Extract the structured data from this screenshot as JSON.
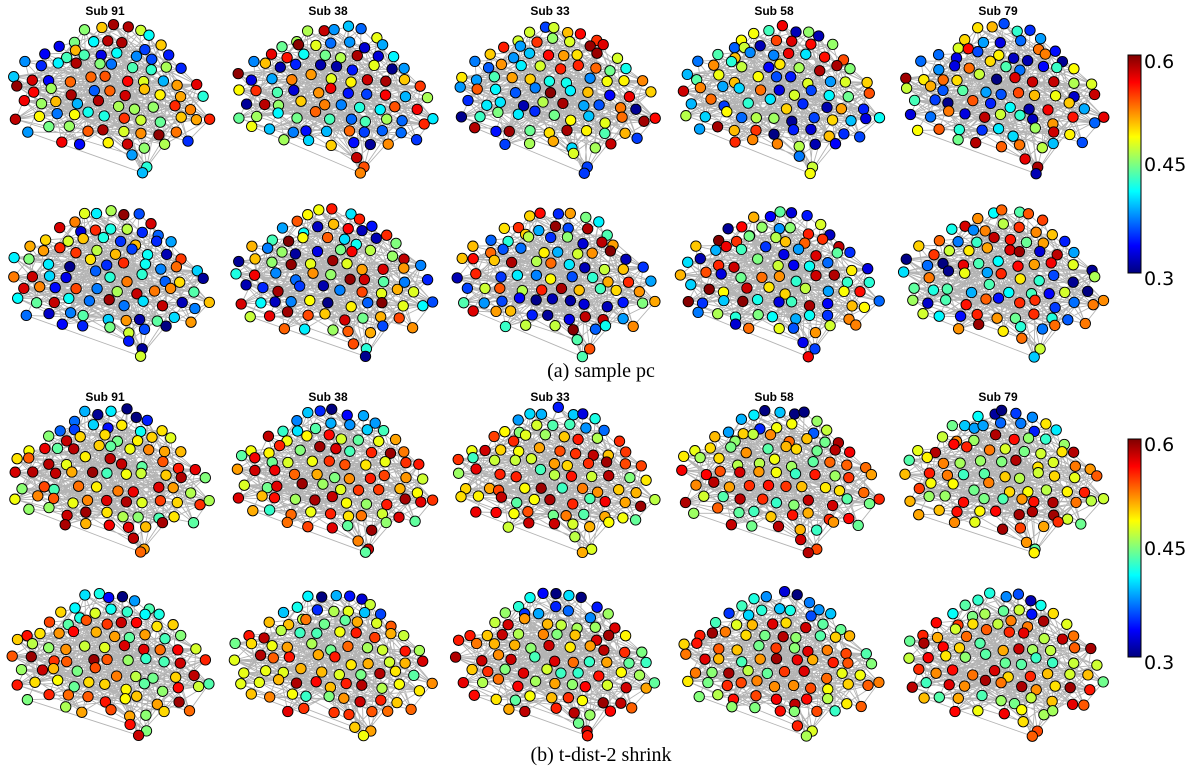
{
  "panels": [
    {
      "caption": "(a) sample pc",
      "subjects": [
        "Sub 91",
        "Sub 38",
        "Sub 33",
        "Sub 58",
        "Sub 79"
      ],
      "colorbar": {
        "min": 0.3,
        "max": 0.6,
        "ticks": [
          "0.6",
          "0.45",
          "0.3"
        ],
        "colormap": "jet"
      }
    },
    {
      "caption": "(b) t-dist-2 shrink",
      "subjects": [
        "Sub 91",
        "Sub 38",
        "Sub 33",
        "Sub 58",
        "Sub 79"
      ],
      "colorbar": {
        "min": 0.3,
        "max": 0.6,
        "ticks": [
          "0.6",
          "0.45",
          "0.3"
        ],
        "colormap": "jet"
      }
    }
  ],
  "style": {
    "edge_color": "#b4b4b4",
    "node_outline": "#000000"
  }
}
